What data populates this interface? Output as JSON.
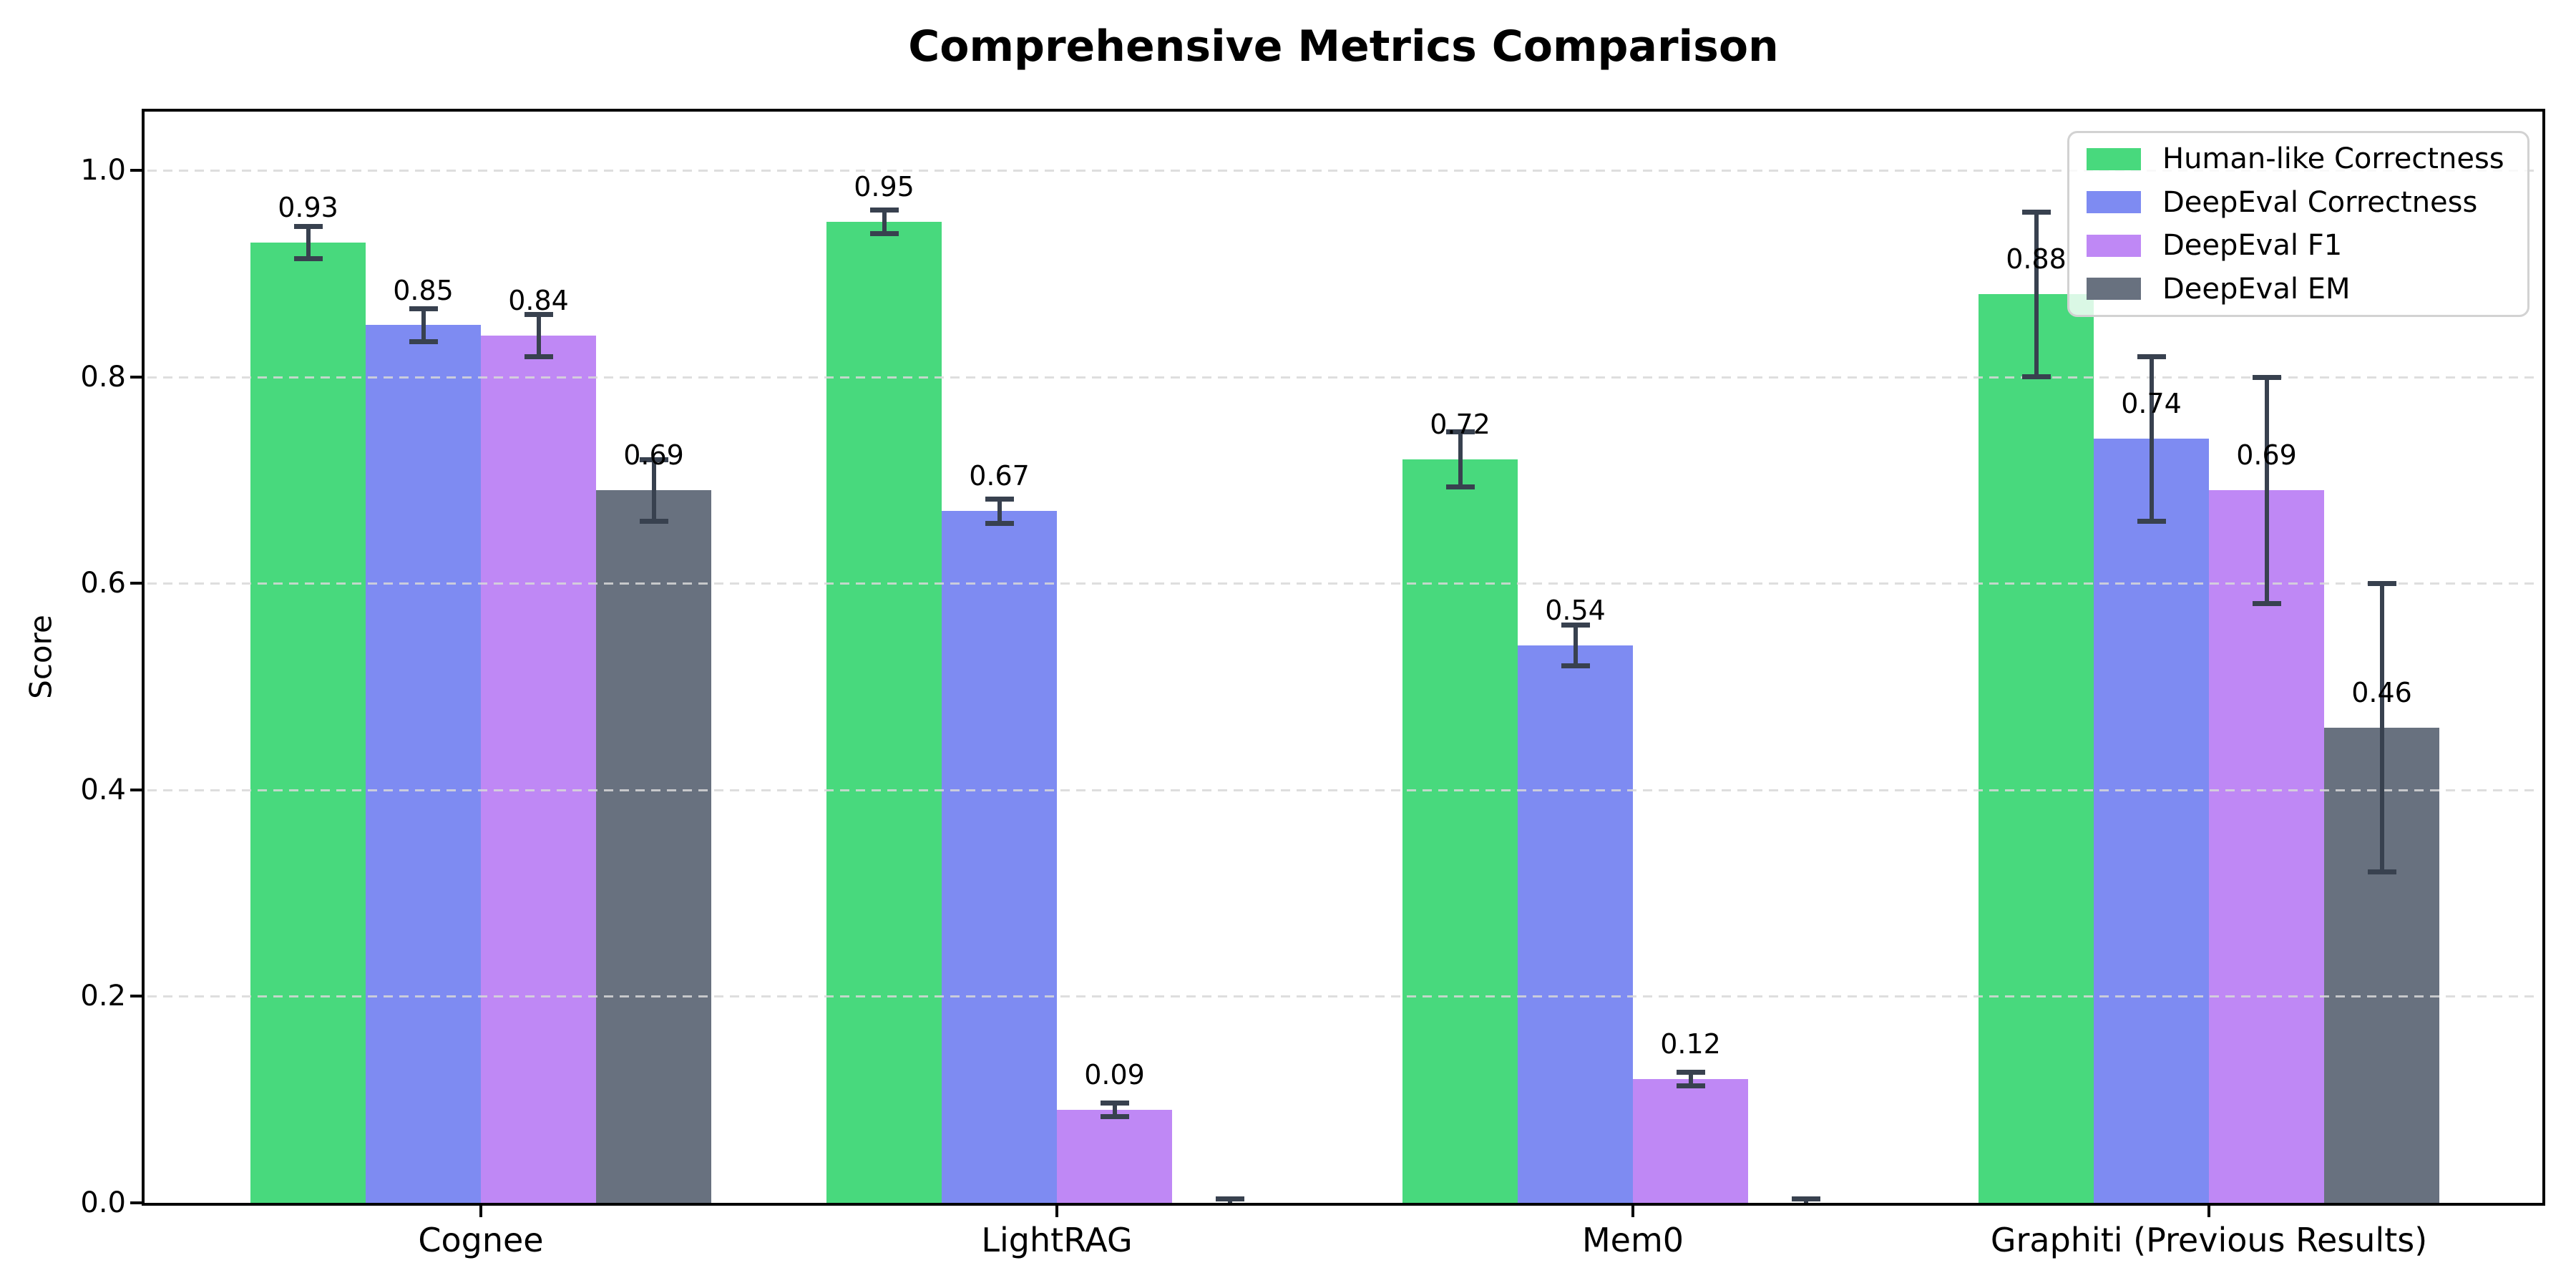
{
  "chart_data": {
    "type": "bar",
    "title": "Comprehensive Metrics Comparison",
    "xlabel": "",
    "ylabel": "Score",
    "categories": [
      "Cognee",
      "LightRAG",
      "Mem0",
      "Graphiti (Previous Results)"
    ],
    "series": [
      {
        "name": "Human-like Correctness",
        "color": "#48d97d",
        "values": [
          0.93,
          0.95,
          0.72,
          0.88
        ],
        "errors": [
          0.016,
          0.012,
          0.027,
          0.08
        ],
        "labels": [
          "0.93",
          "0.95",
          "0.72",
          "0.88"
        ]
      },
      {
        "name": "DeepEval Correctness",
        "color": "#7e8bf2",
        "values": [
          0.85,
          0.67,
          0.54,
          0.74
        ],
        "errors": [
          0.016,
          0.012,
          0.02,
          0.08
        ],
        "labels": [
          "0.85",
          "0.67",
          "0.54",
          "0.74"
        ]
      },
      {
        "name": "DeepEval F1",
        "color": "#bf88f5",
        "values": [
          0.84,
          0.09,
          0.12,
          0.69
        ],
        "errors": [
          0.021,
          0.007,
          0.007,
          0.11
        ],
        "labels": [
          "0.84",
          "0.09",
          "0.12",
          "0.69"
        ]
      },
      {
        "name": "DeepEval EM",
        "color": "#68717f",
        "values": [
          0.69,
          0.0,
          0.0,
          0.46
        ],
        "errors": [
          0.03,
          0.004,
          0.004,
          0.14
        ],
        "labels": [
          "0.69",
          null,
          null,
          "0.46"
        ]
      }
    ],
    "ylim": [
      0.0,
      1.057
    ],
    "yticks": [
      0.0,
      0.2,
      0.4,
      0.6,
      0.8,
      1.0
    ],
    "ytick_labels": [
      "0.0",
      "0.2",
      "0.4",
      "0.6",
      "0.8",
      "1.0"
    ],
    "grid": "horizontal dashed",
    "grid_color": "#d8d8d8",
    "legend_position": "upper right",
    "error_bar_color": "#38414f",
    "value_label_offset": 0.02
  }
}
